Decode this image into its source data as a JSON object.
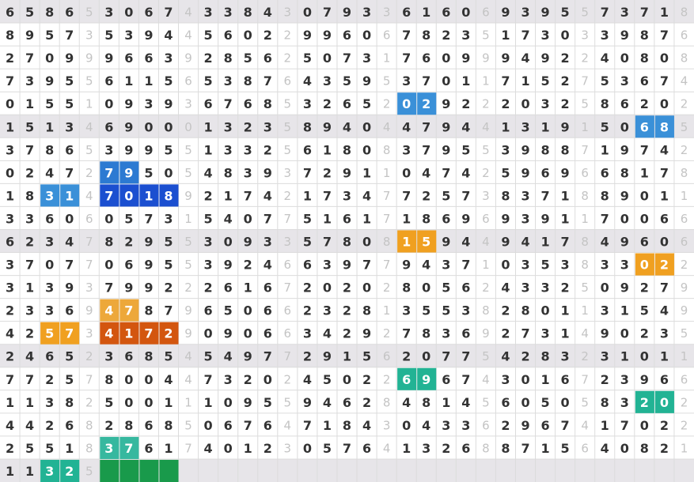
{
  "grid": {
    "rows": [
      [
        6,
        5,
        8,
        6,
        5,
        3,
        0,
        6,
        7,
        4,
        3,
        3,
        8,
        4,
        3,
        0,
        7,
        9,
        3,
        3,
        6,
        1,
        6,
        0,
        6,
        9,
        3,
        9,
        5,
        5,
        7,
        3,
        7,
        1,
        8
      ],
      [
        8,
        9,
        5,
        7,
        3,
        5,
        3,
        9,
        4,
        4,
        5,
        6,
        0,
        2,
        2,
        9,
        9,
        6,
        0,
        6,
        7,
        8,
        2,
        3,
        5,
        1,
        7,
        3,
        0,
        3,
        3,
        9,
        8,
        7,
        6
      ],
      [
        2,
        7,
        0,
        9,
        9,
        9,
        6,
        6,
        3,
        9,
        2,
        8,
        5,
        6,
        2,
        5,
        0,
        7,
        3,
        1,
        7,
        6,
        0,
        9,
        9,
        9,
        4,
        9,
        2,
        2,
        4,
        0,
        8,
        0,
        8
      ],
      [
        7,
        3,
        9,
        5,
        5,
        6,
        1,
        1,
        5,
        6,
        5,
        3,
        8,
        7,
        6,
        4,
        3,
        5,
        9,
        5,
        3,
        7,
        0,
        1,
        1,
        7,
        1,
        5,
        2,
        7,
        5,
        3,
        6,
        7,
        4
      ],
      [
        0,
        1,
        5,
        5,
        1,
        0,
        9,
        3,
        9,
        3,
        6,
        7,
        6,
        8,
        5,
        3,
        2,
        6,
        5,
        2,
        0,
        2,
        9,
        2,
        2,
        2,
        0,
        3,
        2,
        5,
        8,
        6,
        2,
        0,
        2
      ],
      [
        1,
        5,
        1,
        3,
        4,
        6,
        9,
        0,
        0,
        0,
        1,
        3,
        2,
        3,
        5,
        8,
        9,
        4,
        0,
        4,
        4,
        7,
        9,
        4,
        4,
        1,
        3,
        1,
        9,
        1,
        5,
        0,
        6,
        8,
        5
      ],
      [
        3,
        7,
        8,
        6,
        5,
        3,
        9,
        9,
        5,
        5,
        1,
        3,
        3,
        2,
        5,
        6,
        1,
        8,
        0,
        8,
        3,
        7,
        9,
        5,
        5,
        3,
        9,
        8,
        8,
        7,
        1,
        9,
        7,
        4,
        2
      ],
      [
        0,
        2,
        4,
        7,
        2,
        7,
        9,
        5,
        0,
        5,
        4,
        8,
        3,
        9,
        3,
        7,
        2,
        9,
        1,
        1,
        0,
        4,
        7,
        4,
        2,
        5,
        9,
        6,
        9,
        6,
        6,
        8,
        1,
        7,
        8
      ],
      [
        1,
        8,
        3,
        1,
        4,
        7,
        0,
        1,
        8,
        9,
        2,
        1,
        7,
        4,
        2,
        1,
        7,
        3,
        4,
        7,
        7,
        2,
        5,
        7,
        3,
        8,
        3,
        7,
        1,
        8,
        8,
        9,
        0,
        1,
        1
      ],
      [
        3,
        3,
        6,
        0,
        6,
        0,
        5,
        7,
        3,
        1,
        5,
        4,
        0,
        7,
        7,
        5,
        1,
        6,
        1,
        7,
        1,
        8,
        6,
        9,
        6,
        9,
        3,
        9,
        1,
        1,
        7,
        0,
        0,
        6,
        6
      ],
      [
        6,
        2,
        3,
        4,
        7,
        8,
        2,
        9,
        5,
        5,
        3,
        0,
        9,
        3,
        3,
        5,
        7,
        8,
        0,
        8,
        1,
        5,
        9,
        4,
        4,
        9,
        4,
        1,
        7,
        8,
        4,
        9,
        6,
        0,
        6
      ],
      [
        3,
        7,
        0,
        7,
        7,
        0,
        6,
        9,
        5,
        5,
        3,
        9,
        2,
        4,
        6,
        6,
        3,
        9,
        7,
        7,
        9,
        4,
        3,
        7,
        1,
        0,
        3,
        5,
        3,
        8,
        3,
        3,
        0,
        2,
        2
      ],
      [
        3,
        1,
        3,
        9,
        3,
        7,
        9,
        9,
        2,
        2,
        2,
        6,
        1,
        6,
        7,
        2,
        0,
        2,
        0,
        2,
        8,
        0,
        5,
        6,
        2,
        4,
        3,
        3,
        2,
        5,
        0,
        9,
        2,
        7,
        9
      ],
      [
        2,
        3,
        3,
        6,
        9,
        4,
        7,
        8,
        7,
        9,
        6,
        5,
        0,
        6,
        6,
        2,
        3,
        2,
        8,
        1,
        3,
        5,
        5,
        3,
        8,
        2,
        8,
        0,
        1,
        1,
        3,
        1,
        5,
        4,
        9
      ],
      [
        4,
        2,
        5,
        7,
        3,
        4,
        1,
        7,
        2,
        9,
        0,
        9,
        0,
        6,
        6,
        3,
        4,
        2,
        9,
        2,
        7,
        8,
        3,
        6,
        9,
        2,
        7,
        3,
        1,
        4,
        9,
        0,
        2,
        3,
        5
      ],
      [
        2,
        4,
        6,
        5,
        2,
        3,
        6,
        8,
        5,
        4,
        5,
        4,
        9,
        7,
        7,
        2,
        9,
        1,
        5,
        6,
        2,
        0,
        7,
        7,
        5,
        4,
        2,
        8,
        3,
        2,
        3,
        1,
        0,
        1,
        1
      ],
      [
        7,
        7,
        2,
        5,
        7,
        8,
        0,
        0,
        4,
        4,
        7,
        3,
        2,
        0,
        2,
        4,
        5,
        0,
        2,
        2,
        6,
        9,
        6,
        7,
        4,
        3,
        0,
        1,
        6,
        7,
        2,
        3,
        9,
        6,
        6
      ],
      [
        1,
        1,
        3,
        8,
        2,
        5,
        0,
        0,
        1,
        1,
        1,
        0,
        9,
        5,
        5,
        9,
        4,
        6,
        2,
        8,
        4,
        8,
        1,
        4,
        5,
        6,
        0,
        5,
        0,
        5,
        8,
        3,
        2,
        0,
        2
      ],
      [
        4,
        4,
        2,
        6,
        8,
        2,
        8,
        6,
        8,
        5,
        0,
        6,
        7,
        6,
        4,
        7,
        1,
        8,
        4,
        3,
        0,
        4,
        3,
        3,
        6,
        2,
        9,
        6,
        7,
        4,
        1,
        7,
        0,
        2,
        2
      ],
      [
        2,
        5,
        5,
        1,
        8,
        3,
        7,
        6,
        1,
        7,
        4,
        0,
        1,
        2,
        3,
        0,
        5,
        7,
        6,
        4,
        1,
        3,
        2,
        6,
        8,
        8,
        7,
        1,
        5,
        6,
        4,
        0,
        8,
        2,
        1
      ],
      [
        1,
        1,
        3,
        2,
        5,
        null,
        null,
        null,
        null,
        null,
        null,
        null,
        null,
        null,
        null,
        null,
        null,
        null,
        null,
        null,
        null,
        null,
        null,
        null,
        null,
        null,
        null,
        null,
        null,
        null,
        null,
        null,
        null,
        null,
        null
      ]
    ]
  }
}
